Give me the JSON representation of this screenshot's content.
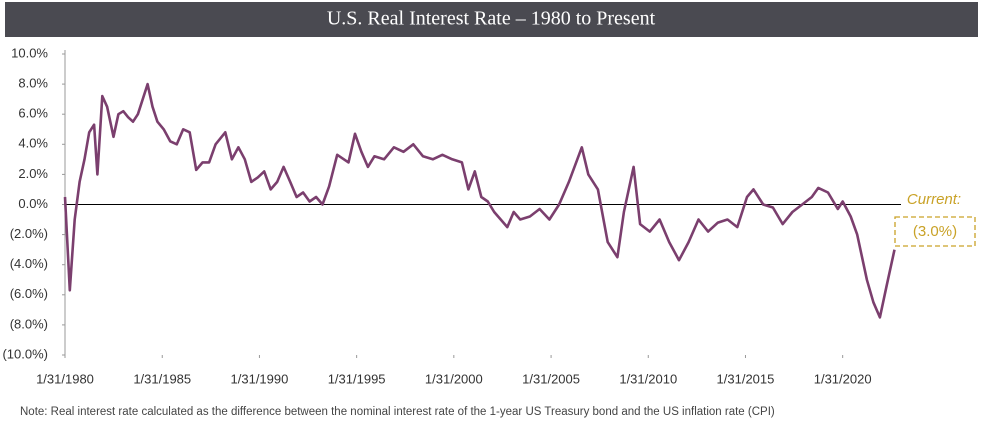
{
  "chart_data": {
    "type": "line",
    "title": "U.S. Real Interest Rate – 1980 to Present",
    "note": "Note: Real interest rate calculated as the difference between the nominal interest rate of the 1-year US Treasury bond and the US inflation rate (CPI)",
    "annotation": {
      "label": "Current:",
      "value_label": "(3.0%)"
    },
    "x": [
      "1/31/1980",
      "4/30/1980",
      "7/31/1980",
      "10/31/1980",
      "1/31/1981",
      "4/30/1981",
      "7/31/1981",
      "9/30/1981",
      "12/31/1981",
      "3/31/1982",
      "7/31/1982",
      "10/31/1982",
      "1/31/1983",
      "4/30/1983",
      "7/31/1983",
      "10/31/1983",
      "4/30/1984",
      "7/31/1984",
      "10/31/1984",
      "2/28/1985",
      "6/30/1985",
      "10/31/1985",
      "2/28/1986",
      "6/30/1986",
      "10/31/1986",
      "2/28/1987",
      "6/30/1987",
      "10/31/1987",
      "4/30/1988",
      "8/31/1988",
      "12/31/1988",
      "4/30/1989",
      "8/31/1989",
      "12/31/1989",
      "4/30/1990",
      "8/31/1990",
      "12/31/1990",
      "4/30/1991",
      "8/31/1991",
      "12/31/1991",
      "4/30/1992",
      "8/31/1992",
      "12/31/1992",
      "4/30/1993",
      "8/31/1993",
      "1/31/1994",
      "8/31/1994",
      "12/31/1994",
      "4/30/1995",
      "8/31/1995",
      "12/31/1995",
      "6/30/1996",
      "12/31/1996",
      "6/30/1997",
      "12/31/1997",
      "6/30/1998",
      "12/31/1998",
      "6/30/1999",
      "12/31/1999",
      "6/30/2000",
      "10/31/2000",
      "2/28/2001",
      "6/30/2001",
      "10/31/2001",
      "2/28/2002",
      "6/30/2002",
      "10/31/2002",
      "2/28/2003",
      "6/30/2003",
      "12/31/2003",
      "6/30/2004",
      "12/31/2004",
      "6/30/2005",
      "12/31/2005",
      "8/31/2006",
      "12/31/2006",
      "6/30/2007",
      "12/31/2007",
      "6/30/2008",
      "10/31/2008",
      "4/30/2009",
      "8/31/2009",
      "2/28/2010",
      "8/31/2010",
      "2/28/2011",
      "8/31/2011",
      "2/28/2012",
      "8/31/2012",
      "2/28/2013",
      "8/31/2013",
      "2/28/2014",
      "8/31/2014",
      "2/28/2015",
      "6/30/2015",
      "12/31/2015",
      "6/30/2016",
      "12/31/2016",
      "6/30/2017",
      "12/31/2017",
      "6/30/2018",
      "10/31/2018",
      "4/30/2019",
      "10/31/2019",
      "1/31/2020",
      "6/30/2020",
      "10/31/2020",
      "4/30/2021",
      "8/31/2021",
      "12/31/2021",
      "4/30/2022",
      "9/30/2022"
    ],
    "series": [
      {
        "name": "Real Interest Rate",
        "color": "#7b3f6e",
        "values": [
          0.5,
          -5.7,
          -1.0,
          1.5,
          3.0,
          4.8,
          5.3,
          2.0,
          7.2,
          6.5,
          4.5,
          6.0,
          6.2,
          5.8,
          5.5,
          6.0,
          8.0,
          6.5,
          5.5,
          5.0,
          4.2,
          4.0,
          5.0,
          4.8,
          2.3,
          2.8,
          2.8,
          4.0,
          4.8,
          3.0,
          3.8,
          3.0,
          1.5,
          1.8,
          2.2,
          1.0,
          1.5,
          2.5,
          1.5,
          0.5,
          0.8,
          0.2,
          0.5,
          0.0,
          1.2,
          3.3,
          2.8,
          4.7,
          3.5,
          2.5,
          3.2,
          3.0,
          3.8,
          3.5,
          4.0,
          3.2,
          3.0,
          3.3,
          3.0,
          2.8,
          1.0,
          2.2,
          0.5,
          0.2,
          -0.5,
          -1.0,
          -1.5,
          -0.5,
          -1.0,
          -0.8,
          -0.3,
          -1.0,
          0.0,
          1.5,
          3.8,
          2.0,
          1.0,
          -2.5,
          -3.5,
          -0.5,
          2.5,
          -1.3,
          -1.8,
          -1.0,
          -2.5,
          -3.7,
          -2.5,
          -1.0,
          -1.8,
          -1.2,
          -1.0,
          -1.5,
          0.5,
          1.0,
          0.0,
          -0.2,
          -1.3,
          -0.5,
          0.0,
          0.5,
          1.1,
          0.8,
          -0.3,
          0.2,
          -0.8,
          -2.0,
          -5.0,
          -6.5,
          -7.5,
          -5.5,
          -3.0
        ]
      }
    ],
    "xlim": [
      "1/31/1980",
      "1/31/2023"
    ],
    "xticks": [
      "1/31/1980",
      "1/31/1985",
      "1/31/1990",
      "1/31/1995",
      "1/31/2000",
      "1/31/2005",
      "1/31/2010",
      "1/31/2015",
      "1/31/2020"
    ],
    "ylim": [
      -10,
      10
    ],
    "yticks": [
      {
        "value": 10,
        "label": "10.0%"
      },
      {
        "value": 8,
        "label": "8.0%"
      },
      {
        "value": 6,
        "label": "6.0%"
      },
      {
        "value": 4,
        "label": "4.0%"
      },
      {
        "value": 2,
        "label": "2.0%"
      },
      {
        "value": 0,
        "label": "0.0%"
      },
      {
        "value": -2,
        "label": "(2.0%)"
      },
      {
        "value": -4,
        "label": "(4.0%)"
      },
      {
        "value": -6,
        "label": "(6.0%)"
      },
      {
        "value": -8,
        "label": "(8.0%)"
      },
      {
        "value": -10,
        "label": "(10.0%)"
      }
    ],
    "grid": false
  }
}
